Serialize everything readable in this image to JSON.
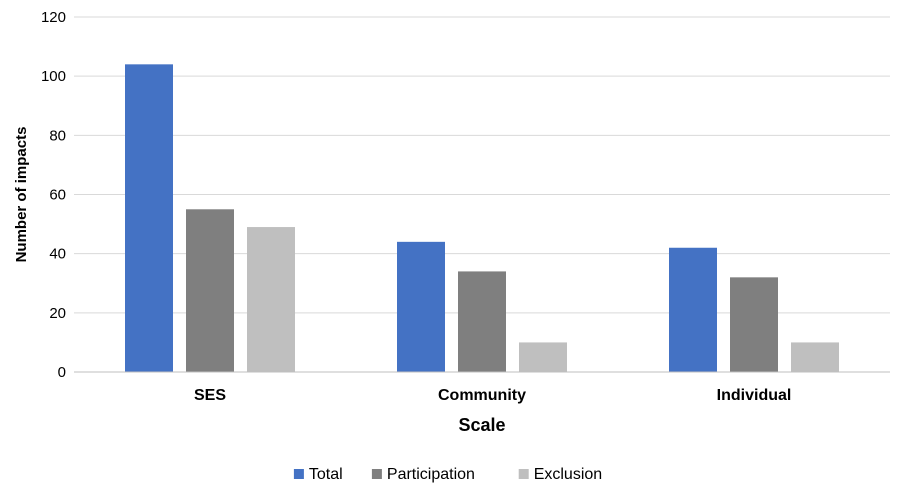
{
  "chart_data": {
    "type": "bar",
    "title": "",
    "xlabel": "Scale",
    "ylabel": "Number of impacts",
    "categories": [
      "SES",
      "Community",
      "Individual"
    ],
    "series": [
      {
        "name": "Total",
        "color": "#4472c4",
        "values": [
          104,
          44,
          42
        ]
      },
      {
        "name": "Participation",
        "color": "#7f7f7f",
        "values": [
          55,
          34,
          32
        ]
      },
      {
        "name": "Exclusion",
        "color": "#bfbfbf",
        "values": [
          49,
          10,
          10
        ]
      }
    ],
    "ylim": [
      0,
      120
    ],
    "yticks": [
      0,
      20,
      40,
      60,
      80,
      100,
      120
    ],
    "grid": "horizontal",
    "legend_position": "bottom"
  }
}
